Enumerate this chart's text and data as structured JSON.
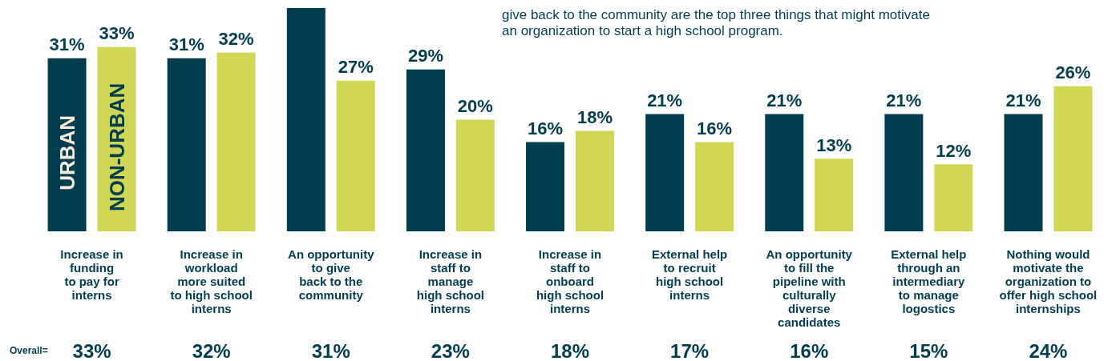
{
  "chart_data": {
    "type": "bar",
    "categories": [
      "Increase in\nfunding\nto pay for\ninterns",
      "Increase in\nworkload\nmore suited\nto high school\ninterns",
      "An opportunity\nto give\nback to the\ncommunity",
      "Increase in\nstaff to\nmanage\nhigh school\ninterns",
      "Increase in\nstaff to\nonboard\nhigh school\ninterns",
      "External help\nto recruit\nhigh school\ninterns",
      "An opportunity\nto fill the\npipeline with\nculturally\ndiverse\ncandidates",
      "External help\nthrough an\nintermediary\nto manage\nlogostics",
      "Nothing would\nmotivate the\norganization to\noffer high school\ninternships"
    ],
    "series": [
      {
        "name": "URBAN",
        "color": "#003d4f",
        "values": [
          31,
          31,
          40,
          29,
          16,
          21,
          21,
          21,
          21
        ],
        "value_labels": [
          "31%",
          "31%",
          null,
          "29%",
          "16%",
          "21%",
          "21%",
          "21%",
          "21%"
        ]
      },
      {
        "name": "NON-URBAN",
        "color": "#d2d655",
        "values": [
          33,
          32,
          27,
          20,
          18,
          16,
          13,
          12,
          26
        ],
        "value_labels": [
          "33%",
          "32%",
          "27%",
          "20%",
          "18%",
          "16%",
          "13%",
          "12%",
          "26%"
        ]
      }
    ],
    "ylim": [
      0,
      40
    ],
    "annotations": [
      "give back to the community are the top three things that might motivate\nan organization to start a high school program.",
      "Overall=",
      "33%",
      "32%",
      "31%",
      "23%",
      "18%",
      "17%",
      "16%",
      "15%",
      "24%"
    ]
  }
}
